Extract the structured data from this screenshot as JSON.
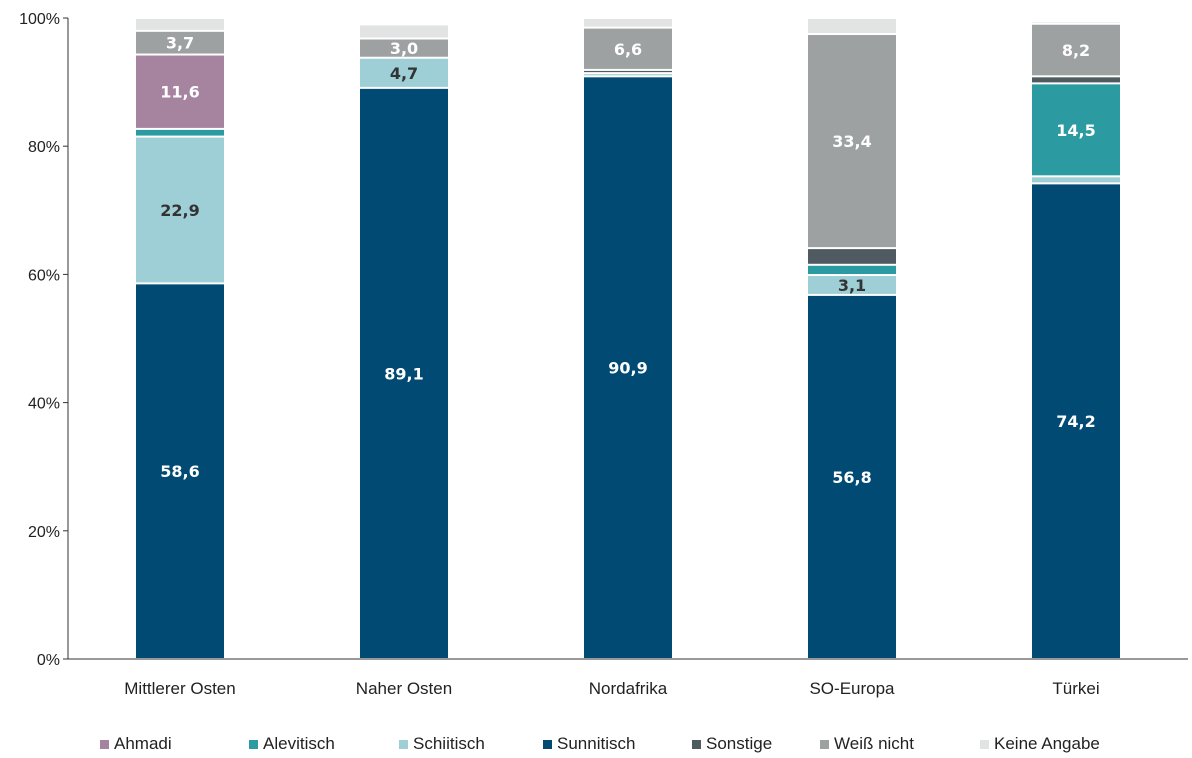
{
  "chart_data": {
    "type": "bar",
    "stacked": true,
    "title": "",
    "xlabel": "",
    "ylabel": "",
    "ylim": [
      0,
      100
    ],
    "y_ticks": [
      "0%",
      "20%",
      "40%",
      "60%",
      "80%",
      "100%"
    ],
    "y_tick_values": [
      0,
      20,
      40,
      60,
      80,
      100
    ],
    "grid": false,
    "legend_position": "bottom",
    "categories": [
      "Mittlerer Osten",
      "Naher Osten",
      "Nordafrika",
      "SO-Europa",
      "Türkei"
    ],
    "series": [
      {
        "name": "Sunnitisch",
        "color": "#004a73",
        "label_color": "#ffffff",
        "values": [
          58.6,
          89.1,
          90.9,
          56.8,
          74.2
        ],
        "labels": [
          "58,6",
          "89,1",
          "90,9",
          "56,8",
          "74,2"
        ]
      },
      {
        "name": "Schiitisch",
        "color": "#9ecfd6",
        "label_color": "#333333",
        "values": [
          22.9,
          4.7,
          0.5,
          3.1,
          1.1
        ],
        "labels": [
          "22,9",
          "4,7",
          "",
          "3,1",
          ""
        ]
      },
      {
        "name": "Alevitisch",
        "color": "#2b9aa1",
        "label_color": "#ffffff",
        "values": [
          1.2,
          0,
          0,
          1.6,
          14.5
        ],
        "labels": [
          "",
          "",
          "",
          "",
          "14,5"
        ]
      },
      {
        "name": "Ahmadi",
        "color": "#a684a0",
        "label_color": "#ffffff",
        "values": [
          11.6,
          0,
          0,
          0,
          0
        ],
        "labels": [
          "11,6",
          "",
          "",
          "",
          ""
        ]
      },
      {
        "name": "Sonstige",
        "color": "#4f5b60",
        "label_color": "#ffffff",
        "values": [
          0,
          0,
          0.5,
          2.6,
          1.1
        ],
        "labels": [
          "",
          "",
          "",
          "",
          ""
        ]
      },
      {
        "name": "Weiß nicht",
        "color": "#9ea1a2",
        "label_color": "#ffffff",
        "values": [
          3.7,
          3.0,
          6.6,
          33.4,
          8.2
        ],
        "labels": [
          "3,7",
          "3,0",
          "6,6",
          "33,4",
          "8,2"
        ]
      },
      {
        "name": "Keine Angabe",
        "color": "#e2e3e3",
        "label_color": "#333333",
        "values": [
          2.0,
          2.2,
          1.5,
          2.5,
          0.4
        ],
        "labels": [
          "",
          "",
          "",
          "",
          ""
        ]
      }
    ],
    "legend_order": [
      "Ahmadi",
      "Alevitisch",
      "Schiitisch",
      "Sunnitisch",
      "Sonstige",
      "Weiß nicht",
      "Keine Angabe"
    ]
  }
}
